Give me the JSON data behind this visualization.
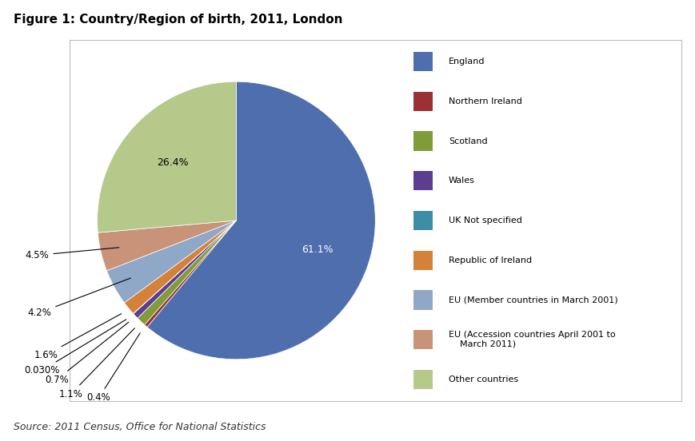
{
  "title": "Figure 1: Country/Region of birth, 2011, London",
  "source": "Source: 2011 Census, Office for National Statistics",
  "labels": [
    "England",
    "Northern Ireland",
    "Scotland",
    "Wales",
    "UK Not specified",
    "Republic of Ireland",
    "EU (Member countries in March 2001)",
    "EU (Accession countries April 2001 to\nMarch 2011)",
    "Other countries"
  ],
  "legend_labels": [
    "England",
    "Northern Ireland",
    "Scotland",
    "Wales",
    "UK Not specified",
    "Republic of Ireland",
    "EU (Member countries in March 2001)",
    "EU (Accession countries April 2001 to\n    March 2011)",
    "Other countries"
  ],
  "values": [
    61.1,
    0.4,
    1.1,
    0.7,
    0.03,
    1.6,
    4.2,
    4.5,
    26.4
  ],
  "colors": [
    "#4F6EAD",
    "#9B3132",
    "#7F9B3A",
    "#5C3D8F",
    "#3B8EA5",
    "#D4813A",
    "#8FA8C8",
    "#C9937A",
    "#B5C98A"
  ],
  "pct_labels": [
    "61.1%",
    "0.4%",
    "1.1%",
    "0.7%",
    "0.030%",
    "1.6%",
    "4.2%",
    "4.5%",
    "26.4%"
  ],
  "figsize": [
    8.69,
    5.52
  ],
  "dpi": 100
}
